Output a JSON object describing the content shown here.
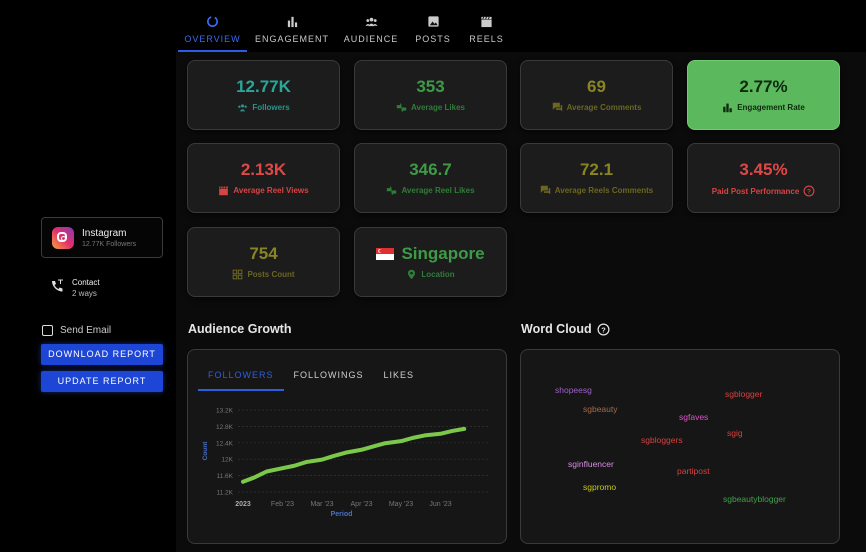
{
  "tabs": [
    {
      "label": "OVERVIEW",
      "icon": "overview-icon",
      "active": true
    },
    {
      "label": "ENGAGEMENT",
      "icon": "bar-chart-icon"
    },
    {
      "label": "AUDIENCE",
      "icon": "people-icon"
    },
    {
      "label": "POSTS",
      "icon": "image-icon"
    },
    {
      "label": "REELS",
      "icon": "clapper-icon"
    }
  ],
  "stats": [
    {
      "value": "12.77K",
      "label": "Followers",
      "icon": "group-icon",
      "color": "#2aa79b"
    },
    {
      "value": "353",
      "label": "Average Likes",
      "icon": "thumbs-icon",
      "color": "#3f9a48"
    },
    {
      "value": "69",
      "label": "Average Comments",
      "icon": "comments-icon",
      "color": "#8a8524"
    },
    {
      "value": "2.77%",
      "label": "Engagement Rate",
      "icon": "bar-chart-icon",
      "color": "#5cb85c"
    },
    {
      "value": "2.13K",
      "label": "Average Reel Views",
      "icon": "clapper-icon",
      "color": "#e04848"
    },
    {
      "value": "346.7",
      "label": "Average Reel Likes",
      "icon": "thumbs-icon",
      "color": "#3f9a48"
    },
    {
      "value": "72.1",
      "label": "Average Reels Comments",
      "icon": "comments-icon",
      "color": "#8a8524"
    },
    {
      "value": "3.45%",
      "label": "Paid Post Performance",
      "icon": "help-icon",
      "color": "#e04848"
    },
    {
      "value": "754",
      "label": "Posts Count",
      "icon": "grid-icon",
      "color": "#8a8524"
    },
    {
      "value": "Singapore",
      "label": "Location",
      "icon": "location-pin-icon",
      "color": "#3f9a48"
    }
  ],
  "sidebar": {
    "profile_name": "Instagram",
    "profile_sub": "12.77K Followers",
    "contact_title": "Contact",
    "contact_sub": "2 ways",
    "send_email": "Send Email",
    "download_label": "DOWNLOAD REPORT",
    "update_label": "UPDATE REPORT"
  },
  "audience_growth": {
    "title": "Audience Growth",
    "subtabs": [
      "FOLLOWERS",
      "FOLLOWINGS",
      "LIKES"
    ],
    "active_subtab": "FOLLOWERS"
  },
  "word_cloud": {
    "title": "Word Cloud",
    "words": [
      {
        "text": "shopeesg",
        "color": "#a05fd0"
      },
      {
        "text": "sgblogger",
        "color": "#d94040"
      },
      {
        "text": "sgbeauty",
        "color": "#a86a4a"
      },
      {
        "text": "sgfaves",
        "color": "#d855c8"
      },
      {
        "text": "sgig",
        "color": "#d94040"
      },
      {
        "text": "sgbloggers",
        "color": "#d94040"
      },
      {
        "text": "sginfluencer",
        "color": "#d58fe0"
      },
      {
        "text": "partipost",
        "color": "#d94040"
      },
      {
        "text": "sgpromo",
        "color": "#c9c620"
      },
      {
        "text": "sgbeautyblogger",
        "color": "#3fa14a"
      }
    ]
  },
  "chart_data": {
    "type": "line",
    "title": "",
    "xlabel": "Period",
    "ylabel": "Count",
    "x_ticks": [
      "2023",
      "Feb '23",
      "Mar '23",
      "Apr '23",
      "May '23",
      "Jun '23"
    ],
    "y_ticks": [
      "11.2K",
      "11.6K",
      "12K",
      "12.4K",
      "12.8K",
      "13.2K"
    ],
    "ylim": [
      11200,
      13200
    ],
    "grid": true,
    "series": [
      {
        "color": "#7cc94a",
        "x": [
          0,
          0.3,
          0.6,
          1.0,
          1.3,
          1.6,
          2.0,
          2.3,
          2.6,
          3.0,
          3.3,
          3.6,
          4.0,
          4.3,
          4.6,
          5.0,
          5.3,
          5.6
        ],
        "values": [
          11450,
          11560,
          11700,
          11780,
          11840,
          11930,
          11990,
          12080,
          12160,
          12230,
          12310,
          12390,
          12440,
          12520,
          12580,
          12620,
          12690,
          12740
        ]
      }
    ]
  }
}
